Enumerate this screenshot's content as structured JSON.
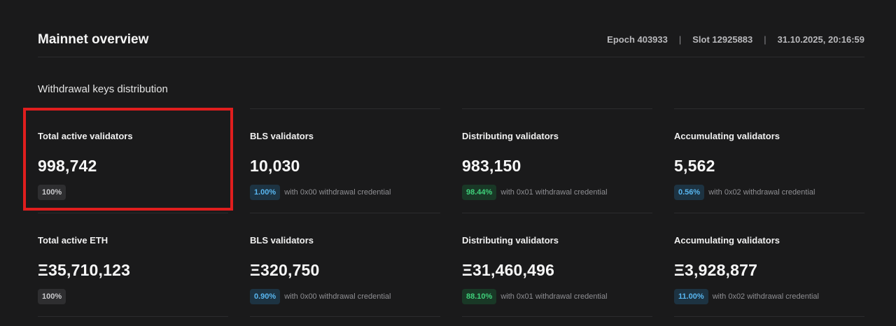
{
  "header": {
    "title": "Mainnet overview",
    "epoch": "Epoch 403933",
    "slot": "Slot 12925883",
    "timestamp": "31.10.2025, 20:16:59",
    "separator": "|"
  },
  "section_title": "Withdrawal keys distribution",
  "rows": [
    [
      {
        "label": "Total active validators",
        "value": "998,742",
        "badge": "100%",
        "badge_color": "gray",
        "note": ""
      },
      {
        "label": "BLS validators",
        "value": "10,030",
        "badge": "1.00%",
        "badge_color": "blue",
        "note": "with 0x00 withdrawal credential"
      },
      {
        "label": "Distributing validators",
        "value": "983,150",
        "badge": "98.44%",
        "badge_color": "green",
        "note": "with 0x01 withdrawal credential"
      },
      {
        "label": "Accumulating validators",
        "value": "5,562",
        "badge": "0.56%",
        "badge_color": "blue",
        "note": "with 0x02 withdrawal credential"
      }
    ],
    [
      {
        "label": "Total active ETH",
        "value": "Ξ35,710,123",
        "badge": "100%",
        "badge_color": "gray",
        "note": ""
      },
      {
        "label": "BLS validators",
        "value": "Ξ320,750",
        "badge": "0.90%",
        "badge_color": "blue",
        "note": "with 0x00 withdrawal credential"
      },
      {
        "label": "Distributing validators",
        "value": "Ξ31,460,496",
        "badge": "88.10%",
        "badge_color": "green",
        "note": "with 0x01 withdrawal credential"
      },
      {
        "label": "Accumulating validators",
        "value": "Ξ3,928,877",
        "badge": "11.00%",
        "badge_color": "blue",
        "note": "with 0x02 withdrawal credential"
      }
    ]
  ],
  "colors": {
    "background": "#1a1a1b",
    "highlight": "#e01e1e",
    "badge_blue": "#58b6f0",
    "badge_green": "#3fd07a"
  }
}
